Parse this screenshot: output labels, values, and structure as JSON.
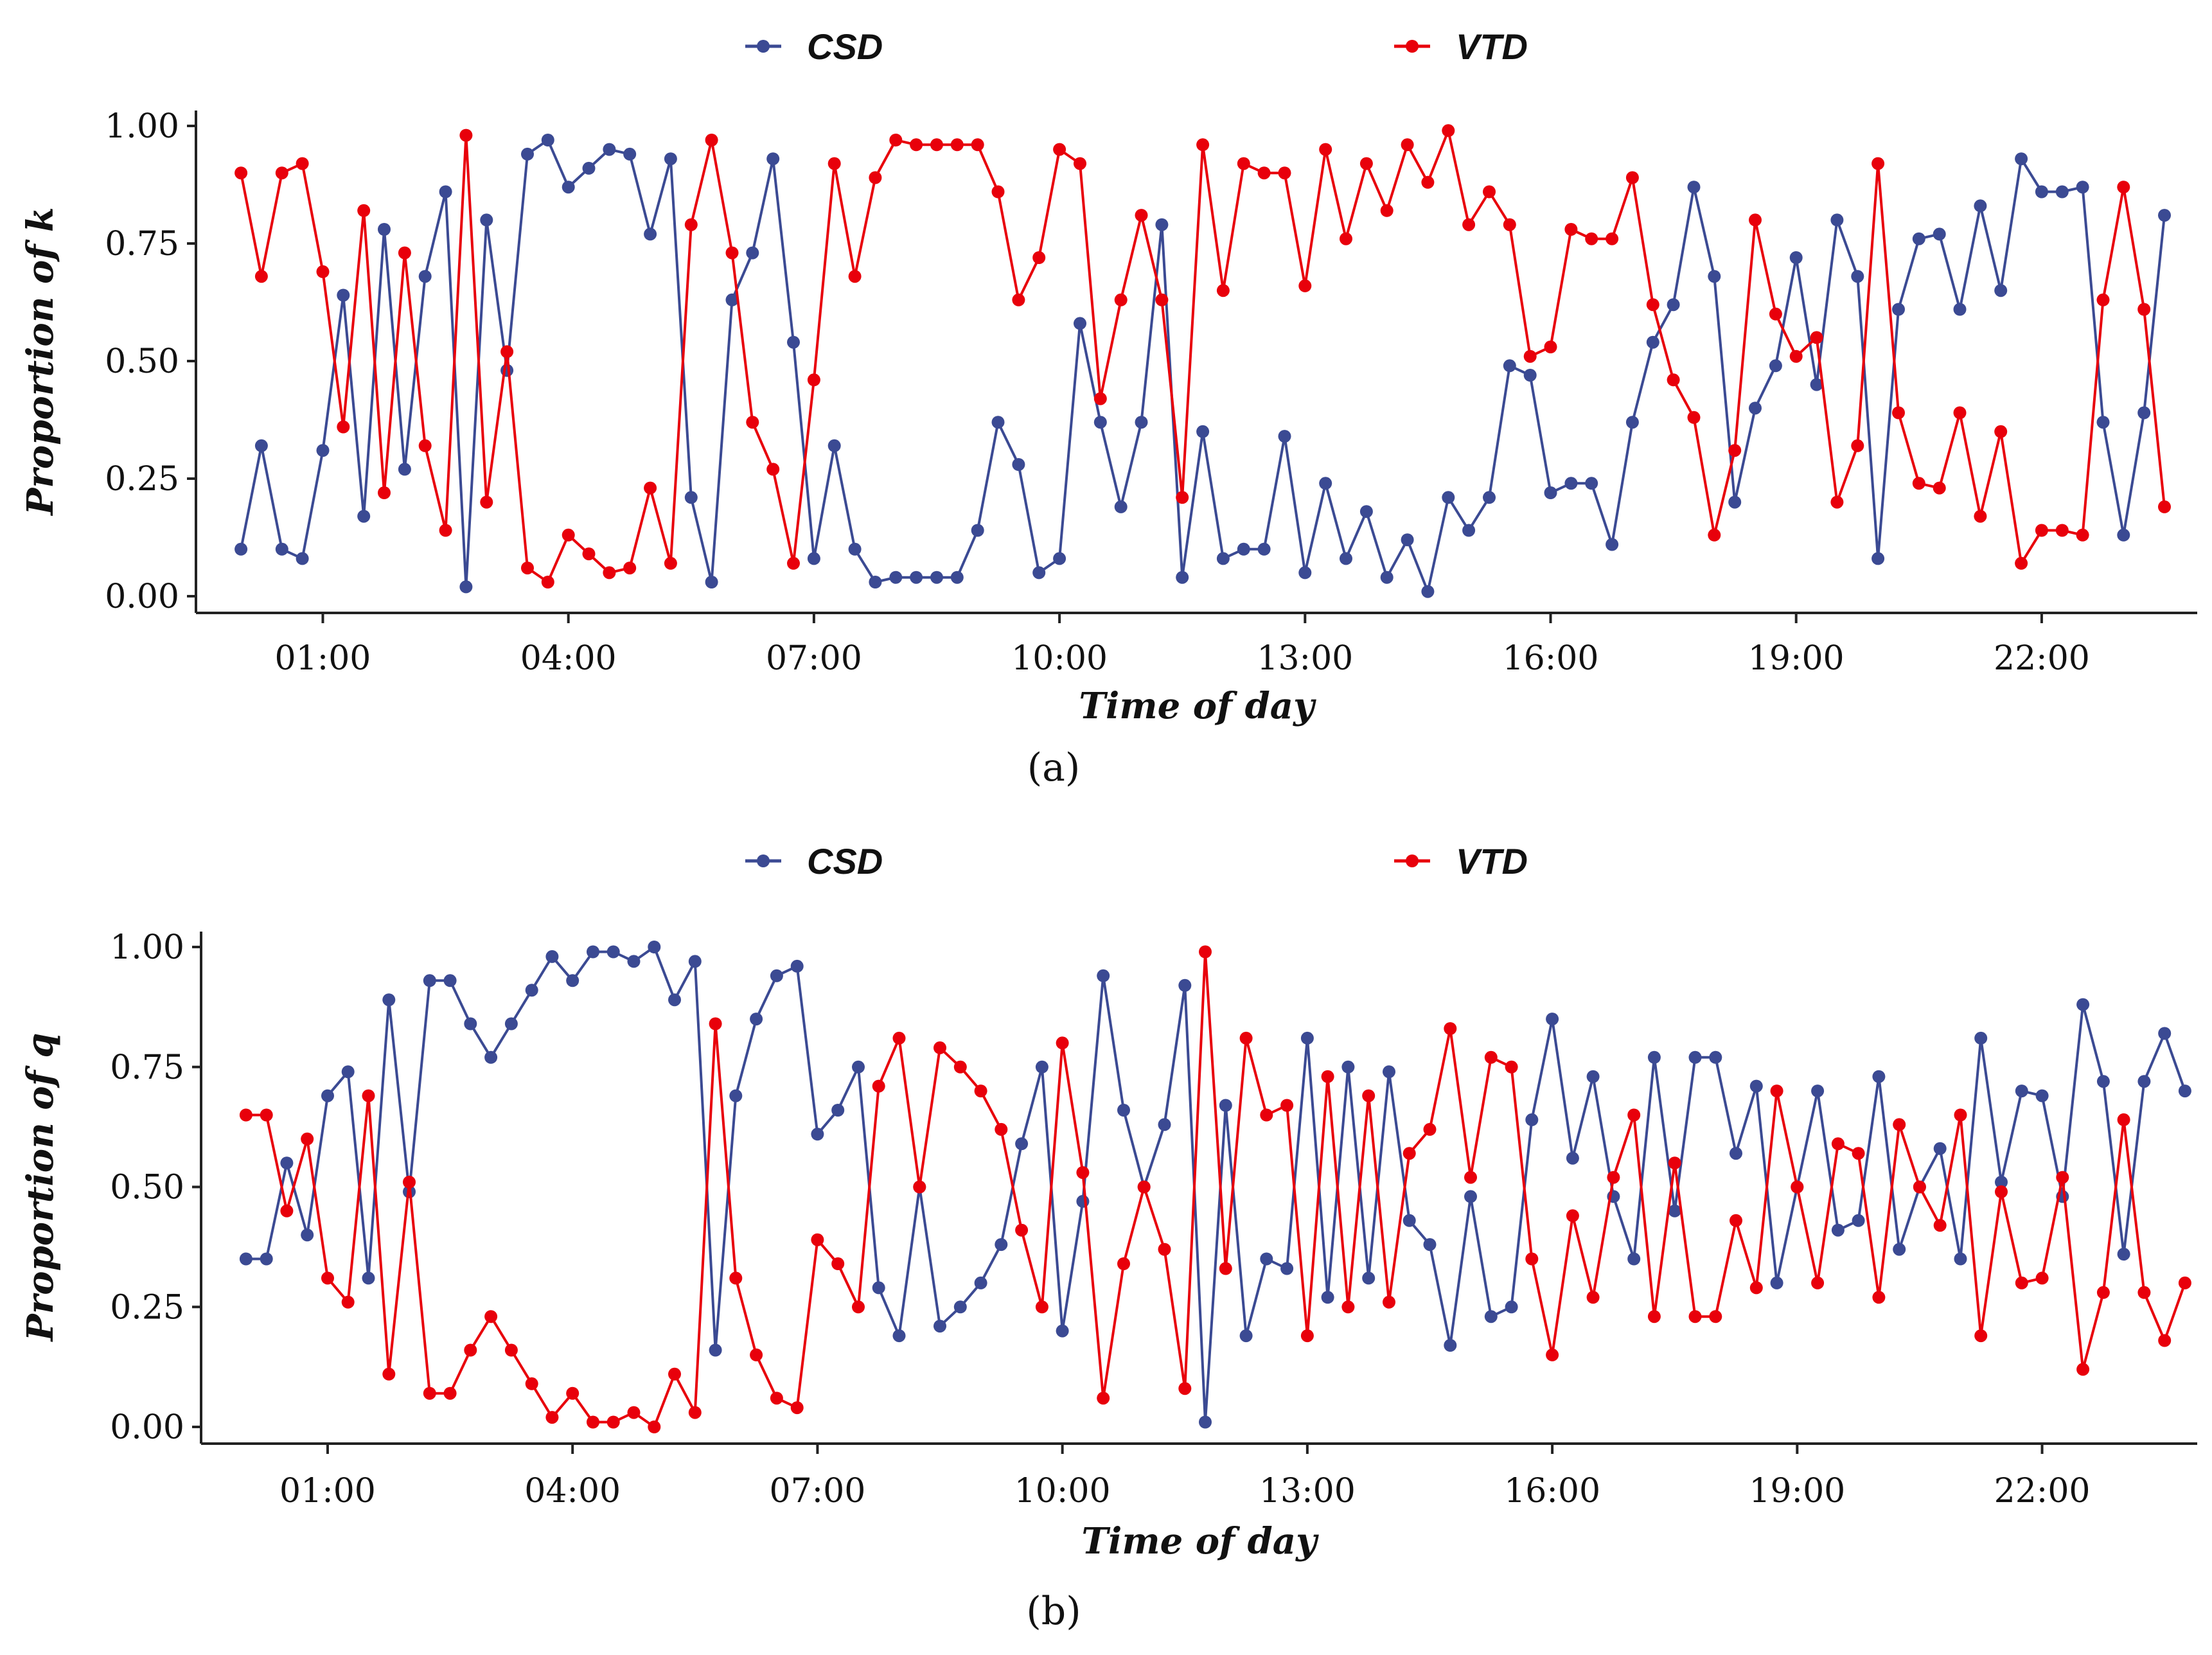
{
  "chart_data": [
    {
      "id": "a",
      "type": "line",
      "caption": "(a)",
      "xlabel": "Time of day",
      "ylabel": "Proportion of k",
      "ylim": [
        0,
        1
      ],
      "xlim": [
        -0.55,
        23.9
      ],
      "yticks": [
        0,
        0.25,
        0.5,
        0.75,
        1
      ],
      "ytick_labels": [
        "0.00",
        "0.25",
        "0.50",
        "0.75",
        "1.00"
      ],
      "xticks": [
        1,
        4,
        7,
        10,
        13,
        16,
        19,
        22
      ],
      "xtick_labels": [
        "01:00",
        "04:00",
        "07:00",
        "10:00",
        "13:00",
        "16:00",
        "19:00",
        "22:00"
      ],
      "x_start": 0,
      "x_step": 0.25,
      "legend_position": "top",
      "series": [
        {
          "name": "CSD",
          "color": "#3b4a93",
          "values": [
            0.1,
            0.32,
            0.1,
            0.08,
            0.31,
            0.64,
            0.17,
            0.78,
            0.27,
            0.68,
            0.86,
            0.02,
            0.8,
            0.48,
            0.94,
            0.97,
            0.87,
            0.91,
            0.95,
            0.94,
            0.77,
            0.93,
            0.21,
            0.03,
            0.63,
            0.73,
            0.93,
            0.54,
            0.08,
            0.32,
            0.1,
            0.03,
            0.04,
            0.04,
            0.04,
            0.04,
            0.14,
            0.37,
            0.28,
            0.05,
            0.08,
            0.58,
            0.37,
            0.19,
            0.37,
            0.79,
            0.04,
            0.35,
            0.08,
            0.1,
            0.1,
            0.34,
            0.05,
            0.24,
            0.08,
            0.18,
            0.04,
            0.12,
            0.01,
            0.21,
            0.14,
            0.21,
            0.49,
            0.47,
            0.22,
            0.24,
            0.24,
            0.11,
            0.37,
            0.54,
            0.62,
            0.87,
            0.68,
            0.2,
            0.4,
            0.49,
            0.72,
            0.45,
            0.8,
            0.68,
            0.08,
            0.61,
            0.76,
            0.77,
            0.61,
            0.83,
            0.65,
            0.93,
            0.86,
            0.86,
            0.87,
            0.37,
            0.13,
            0.39,
            0.81
          ]
        },
        {
          "name": "VTD",
          "color": "#e8000b",
          "values": [
            0.9,
            0.68,
            0.9,
            0.92,
            0.69,
            0.36,
            0.82,
            0.22,
            0.73,
            0.32,
            0.14,
            0.98,
            0.2,
            0.52,
            0.06,
            0.03,
            0.13,
            0.09,
            0.05,
            0.06,
            0.23,
            0.07,
            0.79,
            0.97,
            0.73,
            0.37,
            0.27,
            0.07,
            0.46,
            0.92,
            0.68,
            0.89,
            0.97,
            0.96,
            0.96,
            0.96,
            0.96,
            0.86,
            0.63,
            0.72,
            0.95,
            0.92,
            0.42,
            0.63,
            0.81,
            0.63,
            0.21,
            0.96,
            0.65,
            0.92,
            0.9,
            0.9,
            0.66,
            0.95,
            0.76,
            0.92,
            0.82,
            0.96,
            0.88,
            0.99,
            0.79,
            0.86,
            0.79,
            0.51,
            0.53,
            0.78,
            0.76,
            0.76,
            0.89,
            0.62,
            0.46,
            0.38,
            0.13,
            0.31,
            0.8,
            0.6,
            0.51,
            0.55,
            0.2,
            0.32,
            0.92,
            0.39,
            0.24,
            0.23,
            0.39,
            0.17,
            0.35,
            0.07,
            0.14,
            0.14,
            0.13,
            0.63,
            0.87,
            0.61,
            0.19
          ]
        }
      ]
    },
    {
      "id": "b",
      "type": "line",
      "caption": "(b)",
      "xlabel": "Time of day",
      "ylabel": "Proportion of q",
      "ylim": [
        0,
        1
      ],
      "xlim": [
        -0.55,
        23.9
      ],
      "yticks": [
        0,
        0.25,
        0.5,
        0.75,
        1
      ],
      "ytick_labels": [
        "0.00",
        "0.25",
        "0.50",
        "0.75",
        "1.00"
      ],
      "xticks": [
        1,
        4,
        7,
        10,
        13,
        16,
        19,
        22
      ],
      "xtick_labels": [
        "01:00",
        "04:00",
        "07:00",
        "10:00",
        "13:00",
        "16:00",
        "19:00",
        "22:00"
      ],
      "x_start": 0,
      "x_step": 0.25,
      "legend_position": "top",
      "series": [
        {
          "name": "CSD",
          "color": "#3b4a93",
          "values": [
            0.35,
            0.35,
            0.55,
            0.4,
            0.69,
            0.74,
            0.31,
            0.89,
            0.49,
            0.93,
            0.93,
            0.84,
            0.77,
            0.84,
            0.91,
            0.98,
            0.93,
            0.99,
            0.99,
            0.97,
            1.0,
            0.89,
            0.97,
            0.16,
            0.69,
            0.85,
            0.94,
            0.96,
            0.61,
            0.66,
            0.75,
            0.29,
            0.19,
            0.5,
            0.21,
            0.25,
            0.3,
            0.38,
            0.59,
            0.75,
            0.2,
            0.47,
            0.94,
            0.66,
            0.5,
            0.63,
            0.92,
            0.01,
            0.67,
            0.19,
            0.35,
            0.33,
            0.81,
            0.27,
            0.75,
            0.31,
            0.74,
            0.43,
            0.38,
            0.17,
            0.48,
            0.23,
            0.25,
            0.64,
            0.85,
            0.56,
            0.73,
            0.48,
            0.35,
            0.77,
            0.45,
            0.77,
            0.77,
            0.57,
            0.71,
            0.3,
            0.5,
            0.7,
            0.41,
            0.43,
            0.73,
            0.37,
            0.5,
            0.58,
            0.35,
            0.81,
            0.51,
            0.7,
            0.69,
            0.48,
            0.88,
            0.72,
            0.36,
            0.72,
            0.82,
            0.7
          ]
        },
        {
          "name": "VTD",
          "color": "#e8000b",
          "values": [
            0.65,
            0.65,
            0.45,
            0.6,
            0.31,
            0.26,
            0.69,
            0.11,
            0.51,
            0.07,
            0.07,
            0.16,
            0.23,
            0.16,
            0.09,
            0.02,
            0.07,
            0.01,
            0.01,
            0.03,
            0.0,
            0.11,
            0.03,
            0.84,
            0.31,
            0.15,
            0.06,
            0.04,
            0.39,
            0.34,
            0.25,
            0.71,
            0.81,
            0.5,
            0.79,
            0.75,
            0.7,
            0.62,
            0.41,
            0.25,
            0.8,
            0.53,
            0.06,
            0.34,
            0.5,
            0.37,
            0.08,
            0.99,
            0.33,
            0.81,
            0.65,
            0.67,
            0.19,
            0.73,
            0.25,
            0.69,
            0.26,
            0.57,
            0.62,
            0.83,
            0.52,
            0.77,
            0.75,
            0.35,
            0.15,
            0.44,
            0.27,
            0.52,
            0.65,
            0.23,
            0.55,
            0.23,
            0.23,
            0.43,
            0.29,
            0.7,
            0.5,
            0.3,
            0.59,
            0.57,
            0.27,
            0.63,
            0.5,
            0.42,
            0.65,
            0.19,
            0.49,
            0.3,
            0.31,
            0.52,
            0.12,
            0.28,
            0.64,
            0.28,
            0.18,
            0.3
          ]
        }
      ]
    }
  ]
}
